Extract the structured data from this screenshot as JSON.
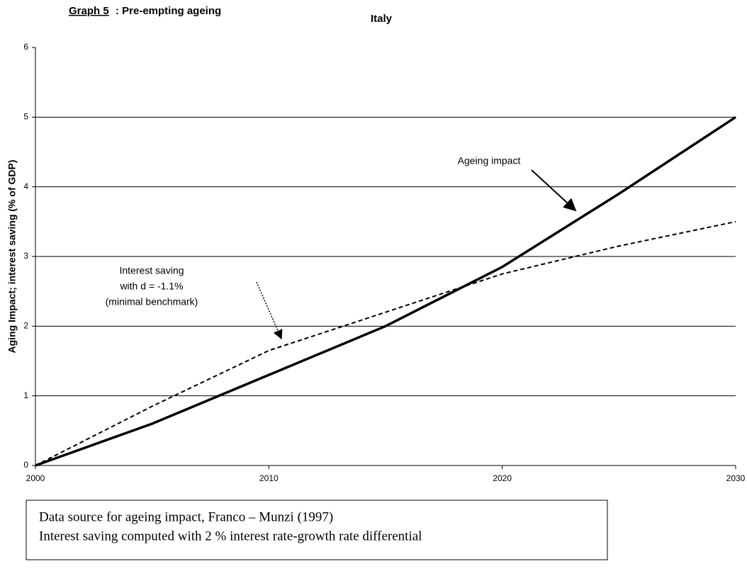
{
  "chart_data": {
    "type": "line",
    "title_label": "Graph 5",
    "title": ": Pre-empting ageing",
    "subtitle": "Italy",
    "y_label": "Aging Impact; interest saving (% of GDP)",
    "x": [
      2000,
      2005,
      2010,
      2015,
      2020,
      2025,
      2030
    ],
    "series": [
      {
        "name": "Ageing impact",
        "color": "#000000",
        "style": "solid",
        "values": [
          0,
          0.6,
          1.3,
          2.0,
          2.85,
          3.9,
          5.0
        ]
      },
      {
        "name": "Interest saving",
        "color": "#000000",
        "style": "dashed",
        "values": [
          0,
          0.85,
          1.65,
          2.2,
          2.75,
          3.15,
          3.5
        ]
      }
    ],
    "annotations": [
      {
        "lines": [
          "Ageing impact"
        ]
      },
      {
        "lines": [
          "Interest saving",
          "with d = -1.1%",
          "(minimal benchmark)"
        ]
      }
    ],
    "xlim": [
      2000,
      2030
    ],
    "xticks": [
      2000,
      2010,
      2020,
      2030
    ],
    "ylim": [
      0,
      6
    ],
    "yticks": [
      0,
      1,
      2,
      3,
      4,
      5,
      6
    ],
    "grid": true,
    "notes": [
      "Data source for ageing impact, Franco – Munzi (1997)",
      "Interest saving computed with 2 % interest rate-growth rate differential"
    ]
  }
}
